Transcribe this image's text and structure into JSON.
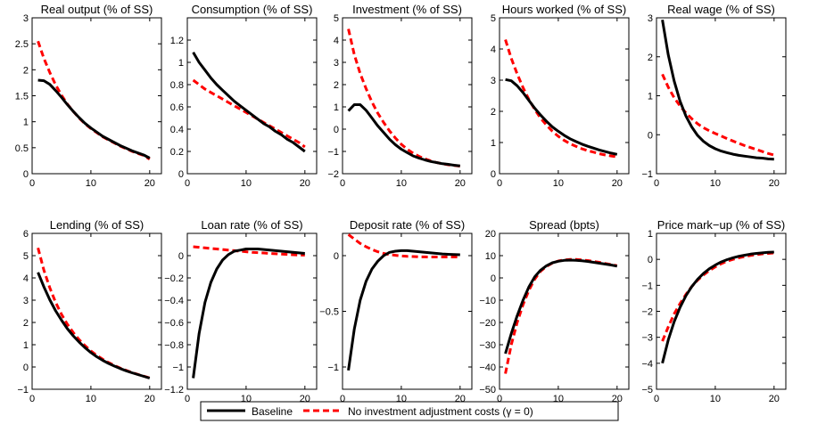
{
  "figure": {
    "legend": {
      "entries": [
        {
          "label": "Baseline",
          "color": "#000000",
          "style": "solid"
        },
        {
          "label": "No investment adjustment costs (γ = 0)",
          "color": "#ff0000",
          "style": "dashed"
        }
      ],
      "position": "bottom-center"
    }
  },
  "chart_data": [
    {
      "type": "line",
      "title": "Real output (% of SS)",
      "xlim": [
        0,
        22
      ],
      "ylim": [
        0,
        3
      ],
      "xticks": [
        "0",
        "10",
        "20"
      ],
      "yticks": [
        "0",
        "0.5",
        "1",
        "1.5",
        "2",
        "2.5",
        "3"
      ],
      "x": [
        1,
        2,
        3,
        4,
        5,
        6,
        7,
        8,
        9,
        10,
        11,
        12,
        13,
        14,
        15,
        16,
        17,
        18,
        19,
        20
      ],
      "series": [
        {
          "name": "Baseline",
          "values": [
            1.8,
            1.79,
            1.72,
            1.6,
            1.47,
            1.33,
            1.2,
            1.08,
            0.97,
            0.88,
            0.8,
            0.72,
            0.66,
            0.6,
            0.54,
            0.49,
            0.44,
            0.4,
            0.36,
            0.3
          ]
        },
        {
          "name": "No investment adjustment costs (γ = 0)",
          "values": [
            2.55,
            2.22,
            1.95,
            1.71,
            1.51,
            1.34,
            1.2,
            1.07,
            0.96,
            0.87,
            0.79,
            0.71,
            0.65,
            0.59,
            0.53,
            0.48,
            0.43,
            0.39,
            0.35,
            0.28
          ]
        }
      ]
    },
    {
      "type": "line",
      "title": "Consumption (% of SS)",
      "xlim": [
        0,
        22
      ],
      "ylim": [
        0,
        1.4
      ],
      "xticks": [
        "0",
        "10",
        "20"
      ],
      "yticks": [
        "0",
        "0.2",
        "0.4",
        "0.6",
        "0.8",
        "1",
        "1.2"
      ],
      "x": [
        1,
        2,
        3,
        4,
        5,
        6,
        7,
        8,
        9,
        10,
        11,
        12,
        13,
        14,
        15,
        16,
        17,
        18,
        19,
        20
      ],
      "series": [
        {
          "name": "Baseline",
          "values": [
            1.09,
            1.0,
            0.93,
            0.86,
            0.8,
            0.75,
            0.7,
            0.65,
            0.61,
            0.57,
            0.53,
            0.49,
            0.45,
            0.42,
            0.38,
            0.35,
            0.31,
            0.28,
            0.24,
            0.2
          ]
        },
        {
          "name": "No investment adjustment costs (γ = 0)",
          "values": [
            0.84,
            0.8,
            0.76,
            0.73,
            0.7,
            0.67,
            0.64,
            0.61,
            0.58,
            0.55,
            0.52,
            0.49,
            0.46,
            0.43,
            0.4,
            0.37,
            0.34,
            0.31,
            0.28,
            0.24
          ]
        }
      ]
    },
    {
      "type": "line",
      "title": "Investment (% of SS)",
      "xlim": [
        0,
        22
      ],
      "ylim": [
        -2,
        5
      ],
      "xticks": [
        "0",
        "10",
        "20"
      ],
      "yticks": [
        "−2",
        "−1",
        "0",
        "1",
        "2",
        "3",
        "4",
        "5"
      ],
      "x": [
        1,
        2,
        3,
        4,
        5,
        6,
        7,
        8,
        9,
        10,
        11,
        12,
        13,
        14,
        15,
        16,
        17,
        18,
        19,
        20
      ],
      "series": [
        {
          "name": "Baseline",
          "values": [
            0.82,
            1.1,
            1.1,
            0.85,
            0.5,
            0.15,
            -0.15,
            -0.45,
            -0.7,
            -0.9,
            -1.05,
            -1.2,
            -1.3,
            -1.38,
            -1.45,
            -1.5,
            -1.55,
            -1.58,
            -1.62,
            -1.65
          ]
        },
        {
          "name": "No investment adjustment costs (γ = 0)",
          "values": [
            4.5,
            3.35,
            2.5,
            1.82,
            1.22,
            0.72,
            0.3,
            -0.08,
            -0.4,
            -0.68,
            -0.9,
            -1.08,
            -1.22,
            -1.33,
            -1.42,
            -1.5,
            -1.55,
            -1.6,
            -1.63,
            -1.66
          ]
        }
      ]
    },
    {
      "type": "line",
      "title": "Hours worked (% of SS)",
      "xlim": [
        0,
        22
      ],
      "ylim": [
        0,
        5
      ],
      "xticks": [
        "0",
        "10",
        "20"
      ],
      "yticks": [
        "0",
        "1",
        "2",
        "3",
        "4",
        "5"
      ],
      "x": [
        1,
        2,
        3,
        4,
        5,
        6,
        7,
        8,
        9,
        10,
        11,
        12,
        13,
        14,
        15,
        16,
        17,
        18,
        19,
        20
      ],
      "series": [
        {
          "name": "Baseline",
          "values": [
            3.02,
            2.98,
            2.82,
            2.6,
            2.35,
            2.1,
            1.88,
            1.68,
            1.5,
            1.36,
            1.23,
            1.12,
            1.03,
            0.95,
            0.88,
            0.82,
            0.76,
            0.71,
            0.66,
            0.62
          ]
        },
        {
          "name": "No investment adjustment costs (γ = 0)",
          "values": [
            4.3,
            3.7,
            3.2,
            2.76,
            2.38,
            2.06,
            1.78,
            1.56,
            1.36,
            1.2,
            1.07,
            0.96,
            0.88,
            0.8,
            0.74,
            0.69,
            0.64,
            0.6,
            0.57,
            0.54
          ]
        }
      ]
    },
    {
      "type": "line",
      "title": "Real wage (% of SS)",
      "xlim": [
        0,
        22
      ],
      "ylim": [
        -1,
        3
      ],
      "xticks": [
        "0",
        "10",
        "20"
      ],
      "yticks": [
        "−1",
        "0",
        "1",
        "2",
        "3"
      ],
      "x": [
        1,
        2,
        3,
        4,
        5,
        6,
        7,
        8,
        9,
        10,
        11,
        12,
        13,
        14,
        15,
        16,
        17,
        18,
        19,
        20
      ],
      "series": [
        {
          "name": "Baseline",
          "values": [
            2.95,
            2.05,
            1.38,
            0.86,
            0.48,
            0.2,
            -0.02,
            -0.17,
            -0.28,
            -0.36,
            -0.42,
            -0.46,
            -0.5,
            -0.53,
            -0.55,
            -0.57,
            -0.59,
            -0.6,
            -0.62,
            -0.63
          ]
        },
        {
          "name": "No investment adjustment costs (γ = 0)",
          "values": [
            1.55,
            1.22,
            0.95,
            0.74,
            0.56,
            0.41,
            0.28,
            0.18,
            0.1,
            0.03,
            -0.03,
            -0.1,
            -0.16,
            -0.22,
            -0.28,
            -0.33,
            -0.38,
            -0.43,
            -0.48,
            -0.52
          ]
        }
      ]
    },
    {
      "type": "line",
      "title": "Lending (% of SS)",
      "xlim": [
        0,
        22
      ],
      "ylim": [
        -1,
        6
      ],
      "xticks": [
        "0",
        "10",
        "20"
      ],
      "yticks": [
        "−1",
        "0",
        "1",
        "2",
        "3",
        "4",
        "5",
        "6"
      ],
      "x": [
        1,
        2,
        3,
        4,
        5,
        6,
        7,
        8,
        9,
        10,
        11,
        12,
        13,
        14,
        15,
        16,
        17,
        18,
        19,
        20
      ],
      "series": [
        {
          "name": "Baseline",
          "values": [
            4.25,
            3.6,
            3.02,
            2.52,
            2.1,
            1.72,
            1.4,
            1.12,
            0.87,
            0.65,
            0.46,
            0.3,
            0.16,
            0.04,
            -0.07,
            -0.17,
            -0.26,
            -0.34,
            -0.42,
            -0.5
          ]
        },
        {
          "name": "No investment adjustment costs (γ = 0)",
          "values": [
            5.35,
            4.35,
            3.56,
            2.9,
            2.36,
            1.92,
            1.55,
            1.23,
            0.96,
            0.72,
            0.52,
            0.35,
            0.2,
            0.07,
            -0.05,
            -0.15,
            -0.25,
            -0.33,
            -0.41,
            -0.49
          ]
        }
      ]
    },
    {
      "type": "line",
      "title": "Loan rate (% of SS)",
      "xlim": [
        0,
        22
      ],
      "ylim": [
        -1.2,
        0.2
      ],
      "xticks": [
        "0",
        "10",
        "20"
      ],
      "yticks": [
        "−1.2",
        "−1",
        "−0.8",
        "−0.6",
        "−0.4",
        "−0.2",
        "0"
      ],
      "x": [
        1,
        2,
        3,
        4,
        5,
        6,
        7,
        8,
        9,
        10,
        11,
        12,
        13,
        14,
        15,
        16,
        17,
        18,
        19,
        20
      ],
      "series": [
        {
          "name": "Baseline",
          "values": [
            -1.1,
            -0.7,
            -0.42,
            -0.24,
            -0.12,
            -0.04,
            0.01,
            0.04,
            0.05,
            0.06,
            0.06,
            0.06,
            0.055,
            0.05,
            0.045,
            0.04,
            0.035,
            0.03,
            0.025,
            0.02
          ]
        },
        {
          "name": "No investment adjustment costs (γ = 0)",
          "values": [
            0.08,
            0.075,
            0.07,
            0.065,
            0.06,
            0.055,
            0.05,
            0.045,
            0.04,
            0.035,
            0.03,
            0.027,
            0.024,
            0.02,
            0.017,
            0.014,
            0.011,
            0.008,
            0.006,
            0.005
          ]
        }
      ]
    },
    {
      "type": "line",
      "title": "Deposit rate (% of SS)",
      "xlim": [
        0,
        22
      ],
      "ylim": [
        -1.2,
        0.2
      ],
      "xticks": [
        "0",
        "10",
        "20"
      ],
      "yticks": [
        "−1",
        "−0.5",
        "0"
      ],
      "x": [
        1,
        2,
        3,
        4,
        5,
        6,
        7,
        8,
        9,
        10,
        11,
        12,
        13,
        14,
        15,
        16,
        17,
        18,
        19,
        20
      ],
      "series": [
        {
          "name": "Baseline",
          "values": [
            -1.03,
            -0.66,
            -0.4,
            -0.23,
            -0.12,
            -0.05,
            0.0,
            0.03,
            0.04,
            0.045,
            0.045,
            0.04,
            0.035,
            0.03,
            0.025,
            0.02,
            0.015,
            0.012,
            0.01,
            0.008
          ]
        },
        {
          "name": "No investment adjustment costs (γ = 0)",
          "values": [
            0.19,
            0.15,
            0.11,
            0.08,
            0.055,
            0.035,
            0.02,
            0.01,
            0.003,
            -0.002,
            -0.006,
            -0.008,
            -0.01,
            -0.011,
            -0.012,
            -0.012,
            -0.012,
            -0.012,
            -0.012,
            -0.012
          ]
        }
      ]
    },
    {
      "type": "line",
      "title": "Spread (bpts)",
      "xlim": [
        0,
        22
      ],
      "ylim": [
        -50,
        20
      ],
      "xticks": [
        "0",
        "10",
        "20"
      ],
      "yticks": [
        "−50",
        "−40",
        "−30",
        "−20",
        "−10",
        "0",
        "10",
        "20"
      ],
      "x": [
        1,
        2,
        3,
        4,
        5,
        6,
        7,
        8,
        9,
        10,
        11,
        12,
        13,
        14,
        15,
        16,
        17,
        18,
        19,
        20
      ],
      "series": [
        {
          "name": "Baseline",
          "values": [
            -34,
            -25,
            -17,
            -10,
            -4,
            0.5,
            3.5,
            5.5,
            6.8,
            7.5,
            7.9,
            8.0,
            7.9,
            7.7,
            7.4,
            7.0,
            6.6,
            6.2,
            5.8,
            5.3
          ]
        },
        {
          "name": "No investment adjustment costs (γ = 0)",
          "values": [
            -43,
            -30,
            -20,
            -12,
            -5.5,
            -0.5,
            3.0,
            5.2,
            6.7,
            7.6,
            8.1,
            8.3,
            8.3,
            8.1,
            7.8,
            7.4,
            7.0,
            6.5,
            6.0,
            5.5
          ]
        }
      ]
    },
    {
      "type": "line",
      "title": "Price mark−up (% of SS)",
      "xlim": [
        0,
        22
      ],
      "ylim": [
        -5,
        1
      ],
      "xticks": [
        "0",
        "10",
        "20"
      ],
      "yticks": [
        "−5",
        "−4",
        "−3",
        "−2",
        "−1",
        "0",
        "1"
      ],
      "x": [
        1,
        2,
        3,
        4,
        5,
        6,
        7,
        8,
        9,
        10,
        11,
        12,
        13,
        14,
        15,
        16,
        17,
        18,
        19,
        20
      ],
      "series": [
        {
          "name": "Baseline",
          "values": [
            -4.0,
            -3.1,
            -2.4,
            -1.85,
            -1.4,
            -1.05,
            -0.77,
            -0.54,
            -0.36,
            -0.22,
            -0.1,
            -0.01,
            0.06,
            0.12,
            0.16,
            0.2,
            0.23,
            0.25,
            0.27,
            0.28
          ]
        },
        {
          "name": "No investment adjustment costs (γ = 0)",
          "values": [
            -3.15,
            -2.6,
            -2.1,
            -1.7,
            -1.35,
            -1.05,
            -0.8,
            -0.6,
            -0.43,
            -0.29,
            -0.17,
            -0.07,
            0.0,
            0.06,
            0.11,
            0.15,
            0.18,
            0.21,
            0.23,
            0.25
          ]
        }
      ]
    }
  ]
}
